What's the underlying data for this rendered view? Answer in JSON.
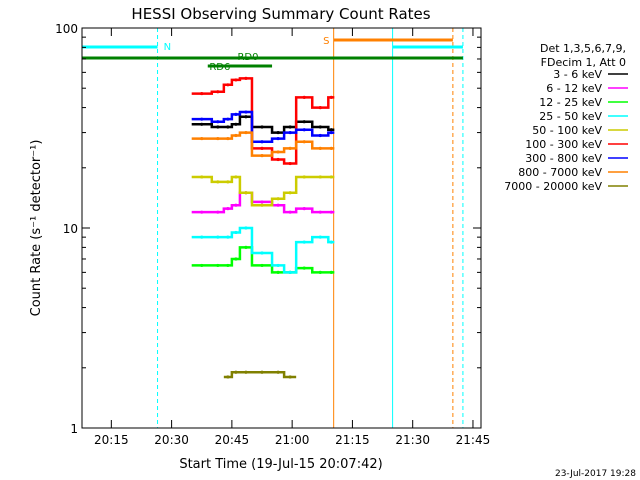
{
  "chart_data": {
    "type": "line",
    "title": "HESSI Observing Summary Count Rates",
    "xlabel": "Start Time (19-Jul-15 20:07:42)",
    "ylabel": "Count Rate (s⁻¹ detector⁻¹)",
    "yscale": "log",
    "ylim": [
      1,
      100
    ],
    "xlim": [
      "20:07:42",
      "21:47:00"
    ],
    "grid": false,
    "legend_placement": "right",
    "x_ticks": [
      "20:15",
      "20:30",
      "20:45",
      "21:00",
      "21:15",
      "21:30",
      "21:45"
    ],
    "y_ticks": [
      "1",
      "10",
      "100"
    ],
    "legend_header": [
      "Det 1,3,5,6,7,9,",
      "FDecim 1, Att 0"
    ],
    "series": [
      {
        "name": "3 - 6 keV",
        "color": "#000000",
        "x": [
          "20:35",
          "20:40",
          "20:43",
          "20:45",
          "20:47",
          "20:50",
          "20:55",
          "20:58",
          "21:01",
          "21:05",
          "21:09"
        ],
        "values": [
          33,
          32,
          32,
          33,
          36,
          32,
          30,
          32,
          34,
          32,
          31
        ]
      },
      {
        "name": "6 - 12 keV",
        "color": "#ff00ff",
        "x": [
          "20:35",
          "20:40",
          "20:43",
          "20:45",
          "20:47",
          "20:50",
          "20:55",
          "20:58",
          "21:01",
          "21:05",
          "21:09"
        ],
        "values": [
          12,
          12,
          12.5,
          13,
          15,
          13.5,
          13,
          12,
          12.5,
          12,
          12
        ]
      },
      {
        "name": "12 - 25 keV",
        "color": "#00ff00",
        "x": [
          "20:35",
          "20:40",
          "20:43",
          "20:45",
          "20:47",
          "20:50",
          "20:55",
          "20:58",
          "21:01",
          "21:05",
          "21:09"
        ],
        "values": [
          6.5,
          6.5,
          6.5,
          7,
          8,
          6.5,
          6,
          6,
          6.3,
          6,
          6
        ]
      },
      {
        "name": "25 - 50 keV",
        "color": "#00ffff",
        "x": [
          "20:35",
          "20:40",
          "20:43",
          "20:45",
          "20:47",
          "20:50",
          "20:55",
          "20:58",
          "21:01",
          "21:05",
          "21:09"
        ],
        "values": [
          9,
          9,
          9,
          9.5,
          10,
          7.5,
          6.5,
          6,
          8.5,
          9,
          8.5
        ]
      },
      {
        "name": "50 - 100 keV",
        "color": "#cccc00",
        "x": [
          "20:35",
          "20:40",
          "20:43",
          "20:45",
          "20:47",
          "20:50",
          "20:55",
          "20:58",
          "21:01",
          "21:05",
          "21:09"
        ],
        "values": [
          18,
          17,
          17,
          18,
          15,
          13,
          14,
          15,
          18,
          18,
          18
        ]
      },
      {
        "name": "100 - 300 keV",
        "color": "#ff0000",
        "x": [
          "20:35",
          "20:40",
          "20:43",
          "20:45",
          "20:47",
          "20:50",
          "20:55",
          "20:58",
          "21:01",
          "21:05",
          "21:09"
        ],
        "values": [
          47,
          48,
          52,
          55,
          56,
          25,
          22,
          21,
          45,
          40,
          45
        ]
      },
      {
        "name": "300 - 800 keV",
        "color": "#0000ff",
        "x": [
          "20:35",
          "20:40",
          "20:43",
          "20:45",
          "20:47",
          "20:50",
          "20:55",
          "20:58",
          "21:01",
          "21:05",
          "21:09"
        ],
        "values": [
          35,
          34,
          35,
          37,
          38,
          27,
          28,
          30,
          31,
          29,
          30
        ]
      },
      {
        "name": "800 - 7000 keV",
        "color": "#ff8000",
        "x": [
          "20:35",
          "20:40",
          "20:43",
          "20:45",
          "20:47",
          "20:50",
          "20:55",
          "20:58",
          "21:01",
          "21:05",
          "21:09"
        ],
        "values": [
          28,
          28,
          28,
          29,
          30,
          23,
          24,
          25,
          27,
          25,
          25
        ]
      },
      {
        "name": "7000 - 20000 keV",
        "color": "#808000",
        "x": [
          "20:35",
          "20:40",
          "20:43",
          "20:45",
          "20:47",
          "20:50",
          "20:55",
          "20:58",
          "21:01",
          "21:05",
          "21:09"
        ],
        "values": [
          null,
          null,
          1.8,
          1.9,
          1.9,
          1.9,
          1.9,
          1.8,
          null,
          null,
          null
        ]
      }
    ],
    "annotations": [
      {
        "label": "N",
        "color": "#00ffff"
      },
      {
        "label": "RD0",
        "color": "#008000"
      },
      {
        "label": "RD6",
        "color": "#008000"
      },
      {
        "label": "S",
        "color": "#ff8000"
      }
    ]
  },
  "footer": {
    "date": "23-Jul-2017 19:28"
  }
}
